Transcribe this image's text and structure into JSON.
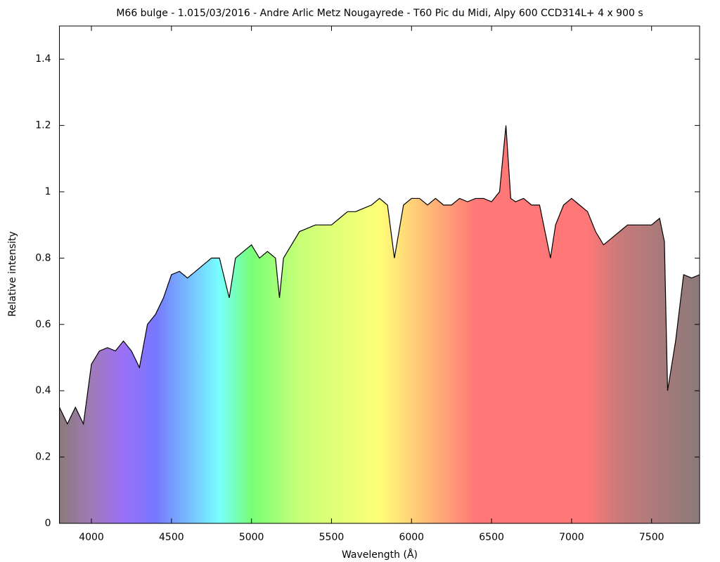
{
  "chart_data": {
    "type": "line",
    "title": "M66 bulge - 1.015/03/2016 - Andre Arlic Metz Nougayrede - T60 Pic du Midi, Alpy 600 CCD314L+ 4 x 900 s",
    "x_label": "Wavelength (Å)",
    "y_label": "Relative intensity",
    "color": "#000000",
    "x": [
      3800,
      3850,
      3900,
      3950,
      4000,
      4050,
      4100,
      4150,
      4200,
      4250,
      4300,
      4350,
      4400,
      4450,
      4500,
      4550,
      4600,
      4650,
      4700,
      4750,
      4800,
      4861,
      4900,
      4950,
      5000,
      5050,
      5100,
      5150,
      5175,
      5200,
      5250,
      5300,
      5350,
      5400,
      5450,
      5500,
      5550,
      5600,
      5650,
      5700,
      5750,
      5800,
      5850,
      5893,
      5950,
      6000,
      6050,
      6100,
      6150,
      6200,
      6250,
      6300,
      6350,
      6400,
      6450,
      6500,
      6550,
      6590,
      6620,
      6650,
      6700,
      6750,
      6800,
      6868,
      6900,
      6950,
      7000,
      7050,
      7100,
      7150,
      7200,
      7250,
      7300,
      7350,
      7400,
      7450,
      7500,
      7550,
      7580,
      7600,
      7650,
      7700,
      7750,
      7800
    ],
    "values": [
      0.35,
      0.3,
      0.35,
      0.3,
      0.48,
      0.52,
      0.53,
      0.52,
      0.55,
      0.52,
      0.47,
      0.6,
      0.63,
      0.68,
      0.75,
      0.76,
      0.74,
      0.76,
      0.78,
      0.8,
      0.8,
      0.68,
      0.8,
      0.82,
      0.84,
      0.8,
      0.82,
      0.8,
      0.68,
      0.8,
      0.84,
      0.88,
      0.89,
      0.9,
      0.9,
      0.9,
      0.92,
      0.94,
      0.94,
      0.95,
      0.96,
      0.98,
      0.96,
      0.8,
      0.96,
      0.98,
      0.98,
      0.96,
      0.98,
      0.96,
      0.96,
      0.98,
      0.97,
      0.98,
      0.98,
      0.97,
      1.0,
      1.2,
      0.98,
      0.97,
      0.98,
      0.96,
      0.96,
      0.8,
      0.9,
      0.96,
      0.98,
      0.96,
      0.94,
      0.88,
      0.84,
      0.86,
      0.88,
      0.9,
      0.9,
      0.9,
      0.9,
      0.92,
      0.85,
      0.4,
      0.55,
      0.75,
      0.74,
      0.75
    ],
    "xlim": [
      3800,
      7800
    ],
    "xticks": [
      4000,
      4500,
      5000,
      5500,
      6000,
      6500,
      7000,
      7500
    ],
    "ylim": [
      0,
      1.5
    ],
    "yticks": [
      0,
      0.2,
      0.4,
      0.6,
      0.8,
      1,
      1.2,
      1.4
    ],
    "grid": false
  }
}
